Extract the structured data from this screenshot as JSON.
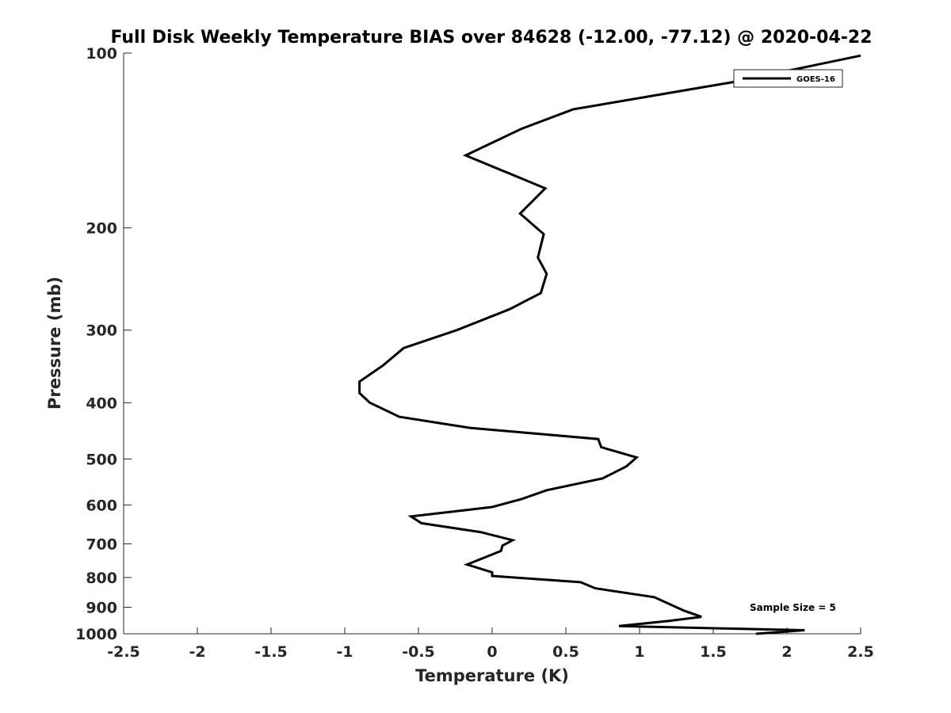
{
  "chart_data": {
    "type": "line",
    "title": "Full Disk Weekly Temperature BIAS over 84628 (-12.00, -77.12) @ 2020-04-22",
    "xlabel": "Temperature (K)",
    "ylabel": "Pressure (mb)",
    "xlim": [
      -2.5,
      2.5
    ],
    "ylim": [
      100,
      1000
    ],
    "y_scale": "log",
    "y_reversed": true,
    "x_ticks": [
      -2.5,
      -2,
      -1.5,
      -1,
      -0.5,
      0,
      0.5,
      1,
      1.5,
      2,
      2.5
    ],
    "x_tick_labels": [
      "-2.5",
      "-2",
      "-1.5",
      "-1",
      "-0.5",
      "0",
      "0.5",
      "1",
      "1.5",
      "2",
      "2.5"
    ],
    "y_ticks": [
      100,
      200,
      300,
      400,
      500,
      600,
      700,
      800,
      900,
      1000
    ],
    "y_tick_labels": [
      "100",
      "200",
      "300",
      "400",
      "500",
      "600",
      "700",
      "800",
      "900",
      "1000"
    ],
    "grid": false,
    "legend_position": "top-right",
    "annotation": "Sample Size = 5",
    "series": [
      {
        "name": "GOES-16",
        "color": "#000000",
        "points": [
          [
            2.5,
            101
          ],
          [
            1.65,
            112
          ],
          [
            0.55,
            125
          ],
          [
            0.2,
            135
          ],
          [
            -0.18,
            150
          ],
          [
            0.36,
            171
          ],
          [
            0.19,
            189
          ],
          [
            0.35,
            205
          ],
          [
            0.31,
            225
          ],
          [
            0.37,
            240
          ],
          [
            0.33,
            259
          ],
          [
            0.12,
            276
          ],
          [
            -0.24,
            300
          ],
          [
            -0.6,
            322
          ],
          [
            -0.74,
            345
          ],
          [
            -0.9,
            368
          ],
          [
            -0.9,
            385
          ],
          [
            -0.83,
            400
          ],
          [
            -0.63,
            423
          ],
          [
            -0.15,
            442
          ],
          [
            0.72,
            462
          ],
          [
            0.74,
            477
          ],
          [
            0.98,
            497
          ],
          [
            0.91,
            515
          ],
          [
            0.75,
            540
          ],
          [
            0.37,
            566
          ],
          [
            0.2,
            586
          ],
          [
            0.0,
            605
          ],
          [
            -0.55,
            628
          ],
          [
            -0.48,
            645
          ],
          [
            -0.08,
            668
          ],
          [
            0.14,
            690
          ],
          [
            0.07,
            705
          ],
          [
            0.06,
            720
          ],
          [
            -0.17,
            760
          ],
          [
            0.0,
            784
          ],
          [
            0.0,
            795
          ],
          [
            0.6,
            815
          ],
          [
            0.7,
            835
          ],
          [
            1.1,
            865
          ],
          [
            1.2,
            888
          ],
          [
            1.3,
            912
          ],
          [
            1.42,
            935
          ],
          [
            1.2,
            950
          ],
          [
            0.86,
            970
          ],
          [
            2.12,
            986
          ],
          [
            1.79,
            1000
          ]
        ]
      }
    ]
  }
}
